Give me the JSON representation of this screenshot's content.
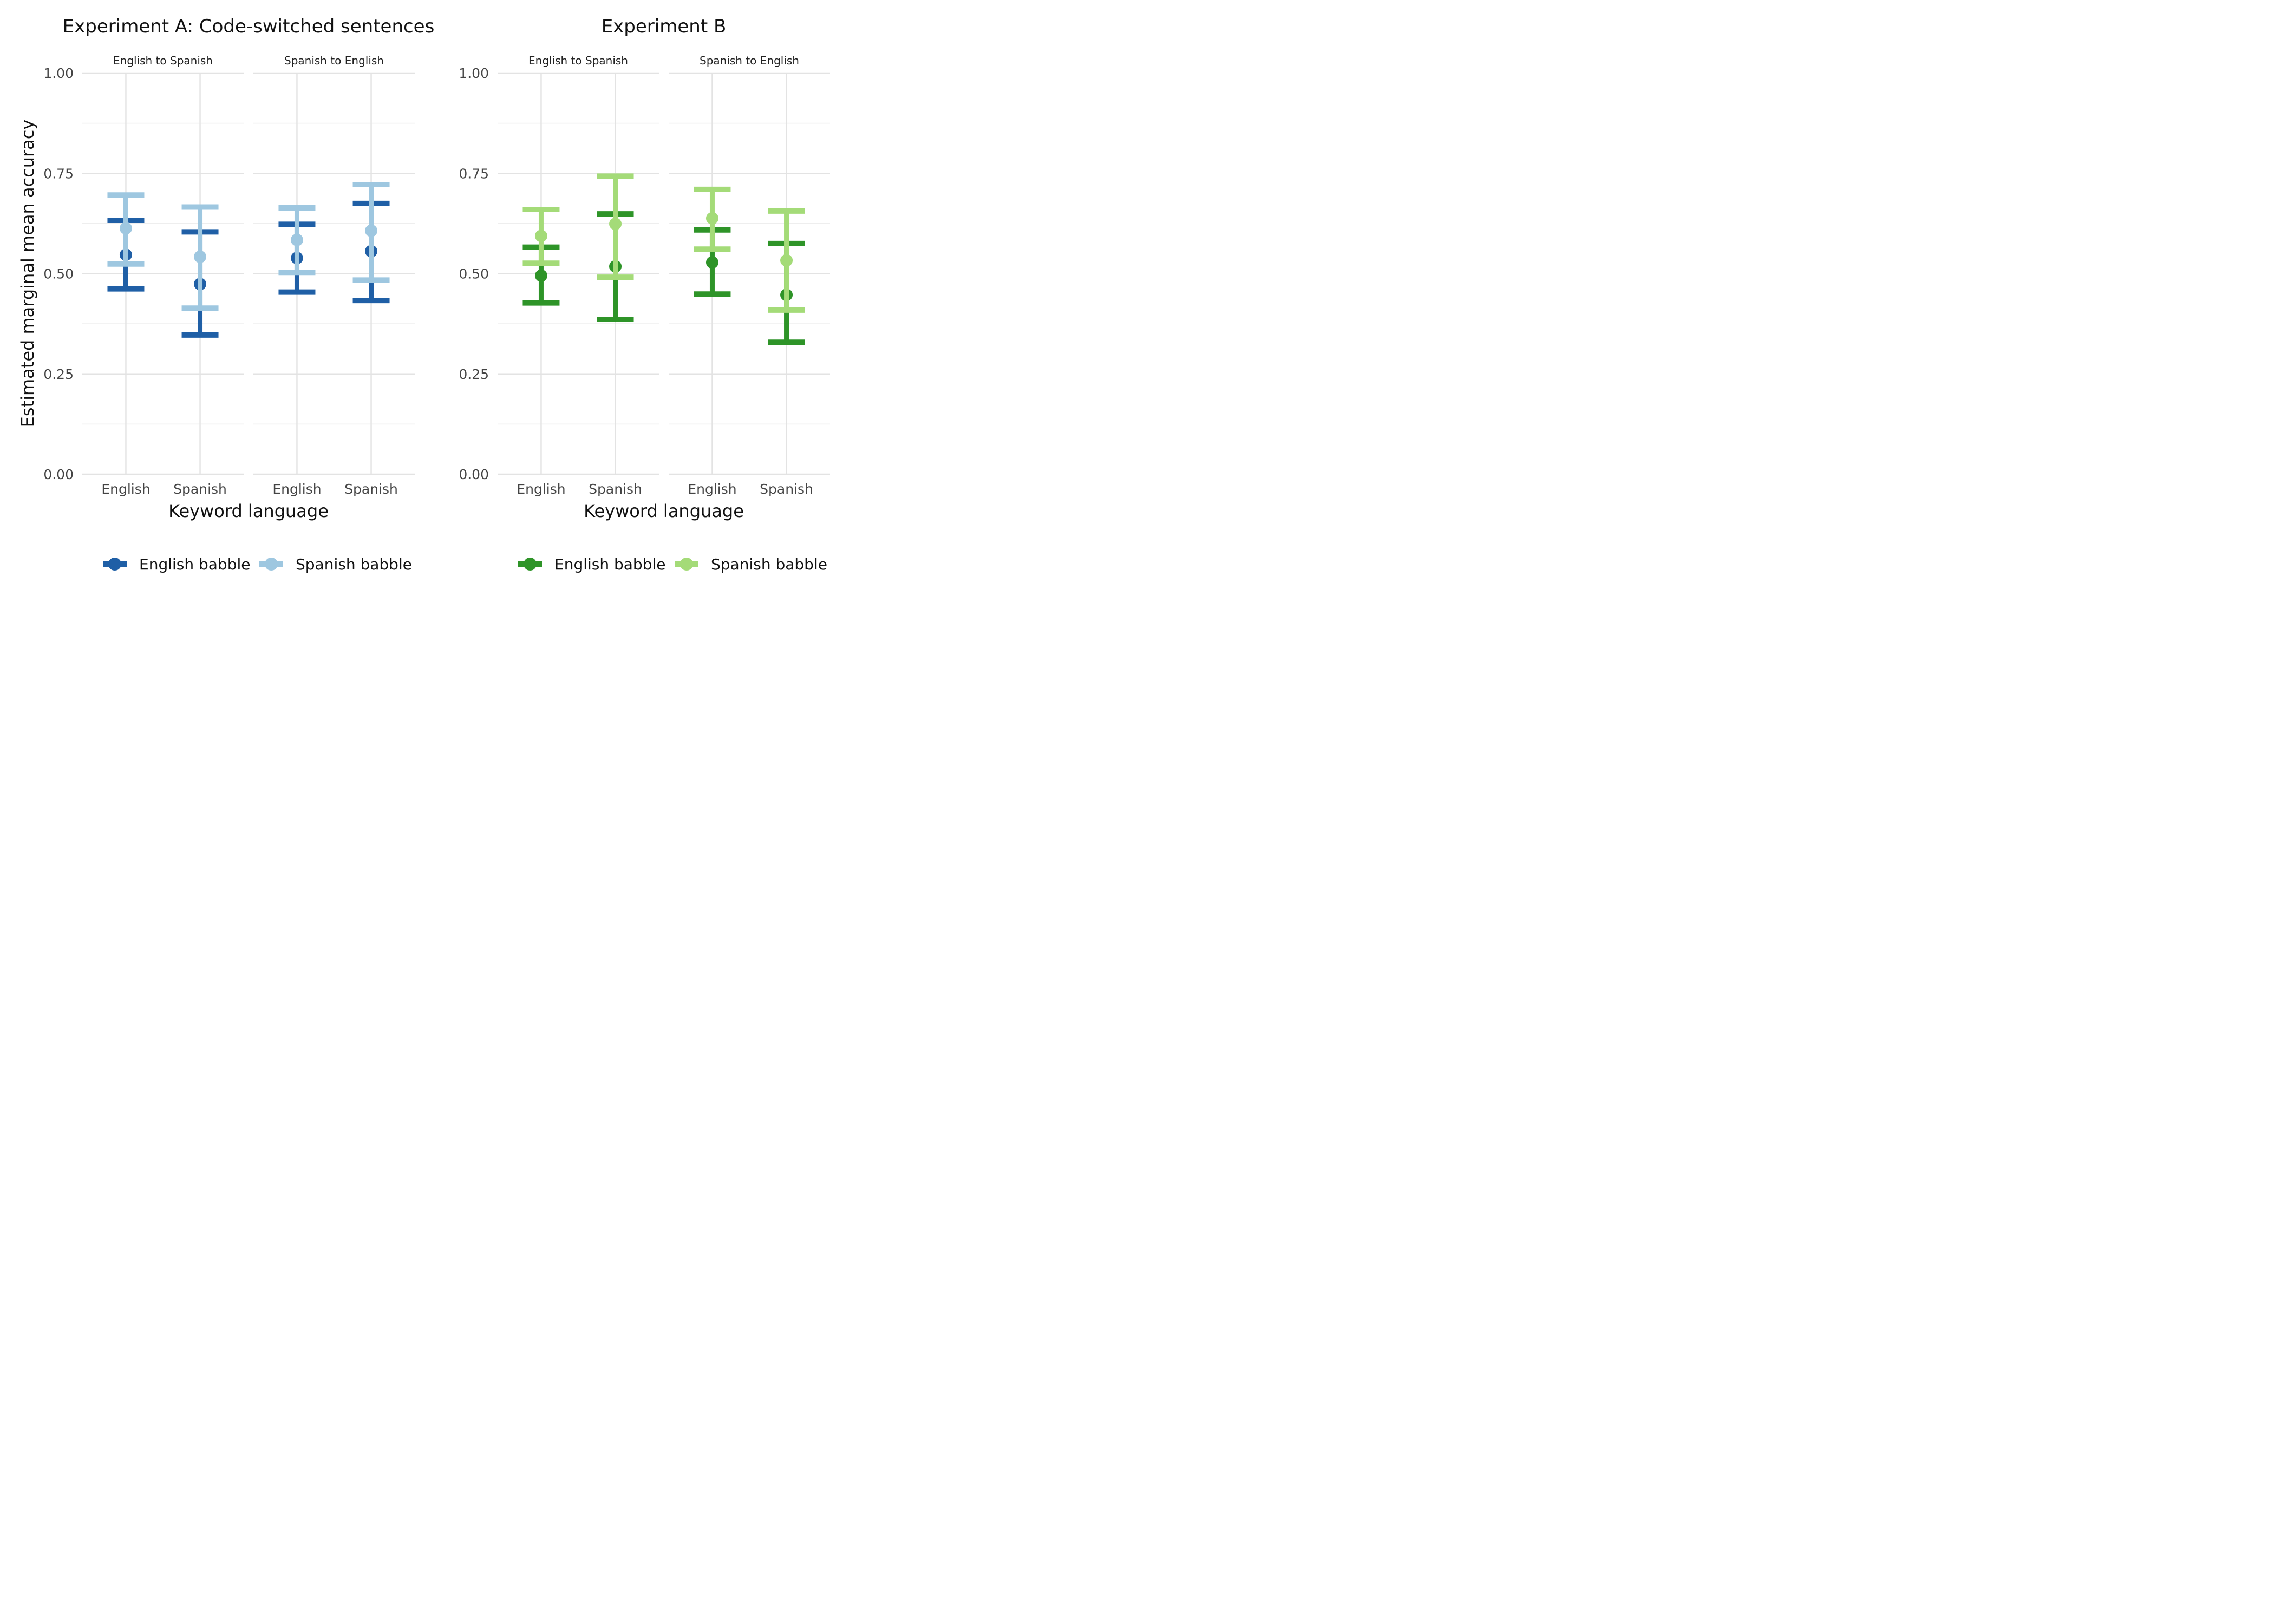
{
  "ylabel": "Estimated marginal mean accuracy",
  "chart_data": [
    {
      "type": "scatter",
      "title": "Experiment A: Code-switched sentences",
      "xlabel": "Keyword language",
      "ylabel": "Estimated marginal mean accuracy",
      "ylim": [
        0,
        1
      ],
      "yticks": [
        "0.00",
        "0.25",
        "0.50",
        "0.75",
        "1.00"
      ],
      "categories": [
        "English",
        "Spanish"
      ],
      "colors": {
        "English babble": "#1f5fa6",
        "Spanish babble": "#9ec7e0"
      },
      "legend": {
        "position": "bottom",
        "entries": [
          "English babble",
          "Spanish babble"
        ]
      },
      "grid": true,
      "facets": [
        {
          "label": "English to Spanish",
          "series": [
            {
              "name": "English babble",
              "points": [
                {
                  "x": "English",
                  "y": 0.547,
                  "low": 0.462,
                  "high": 0.633
                },
                {
                  "x": "Spanish",
                  "y": 0.474,
                  "low": 0.347,
                  "high": 0.604
                }
              ]
            },
            {
              "name": "Spanish babble",
              "points": [
                {
                  "x": "English",
                  "y": 0.613,
                  "low": 0.524,
                  "high": 0.696
                },
                {
                  "x": "Spanish",
                  "y": 0.542,
                  "low": 0.414,
                  "high": 0.666
                }
              ]
            }
          ]
        },
        {
          "label": "Spanish to English",
          "series": [
            {
              "name": "English babble",
              "points": [
                {
                  "x": "English",
                  "y": 0.539,
                  "low": 0.454,
                  "high": 0.623
                },
                {
                  "x": "Spanish",
                  "y": 0.556,
                  "low": 0.433,
                  "high": 0.675
                }
              ]
            },
            {
              "name": "Spanish babble",
              "points": [
                {
                  "x": "English",
                  "y": 0.584,
                  "low": 0.503,
                  "high": 0.664
                },
                {
                  "x": "Spanish",
                  "y": 0.607,
                  "low": 0.484,
                  "high": 0.722
                }
              ]
            }
          ]
        }
      ]
    },
    {
      "type": "scatter",
      "title": "Experiment B",
      "xlabel": "Keyword language",
      "ylabel": "",
      "ylim": [
        0,
        1
      ],
      "yticks": [
        "0.00",
        "0.25",
        "0.50",
        "0.75",
        "1.00"
      ],
      "categories": [
        "English",
        "Spanish"
      ],
      "colors": {
        "English babble": "#2e9428",
        "Spanish babble": "#a4db78"
      },
      "legend": {
        "position": "bottom",
        "entries": [
          "English babble",
          "Spanish babble"
        ]
      },
      "grid": true,
      "facets": [
        {
          "label": "English to Spanish",
          "series": [
            {
              "name": "English babble",
              "points": [
                {
                  "x": "English",
                  "y": 0.495,
                  "low": 0.427,
                  "high": 0.566
                },
                {
                  "x": "Spanish",
                  "y": 0.518,
                  "low": 0.386,
                  "high": 0.649
                }
              ]
            },
            {
              "name": "Spanish babble",
              "points": [
                {
                  "x": "English",
                  "y": 0.594,
                  "low": 0.526,
                  "high": 0.66
                },
                {
                  "x": "Spanish",
                  "y": 0.624,
                  "low": 0.491,
                  "high": 0.743
                }
              ]
            }
          ]
        },
        {
          "label": "Spanish to English",
          "series": [
            {
              "name": "English babble",
              "points": [
                {
                  "x": "English",
                  "y": 0.528,
                  "low": 0.449,
                  "high": 0.609
                },
                {
                  "x": "Spanish",
                  "y": 0.447,
                  "low": 0.329,
                  "high": 0.575
                }
              ]
            },
            {
              "name": "Spanish babble",
              "points": [
                {
                  "x": "English",
                  "y": 0.638,
                  "low": 0.561,
                  "high": 0.71
                },
                {
                  "x": "Spanish",
                  "y": 0.533,
                  "low": 0.409,
                  "high": 0.656
                }
              ]
            }
          ]
        }
      ]
    }
  ]
}
